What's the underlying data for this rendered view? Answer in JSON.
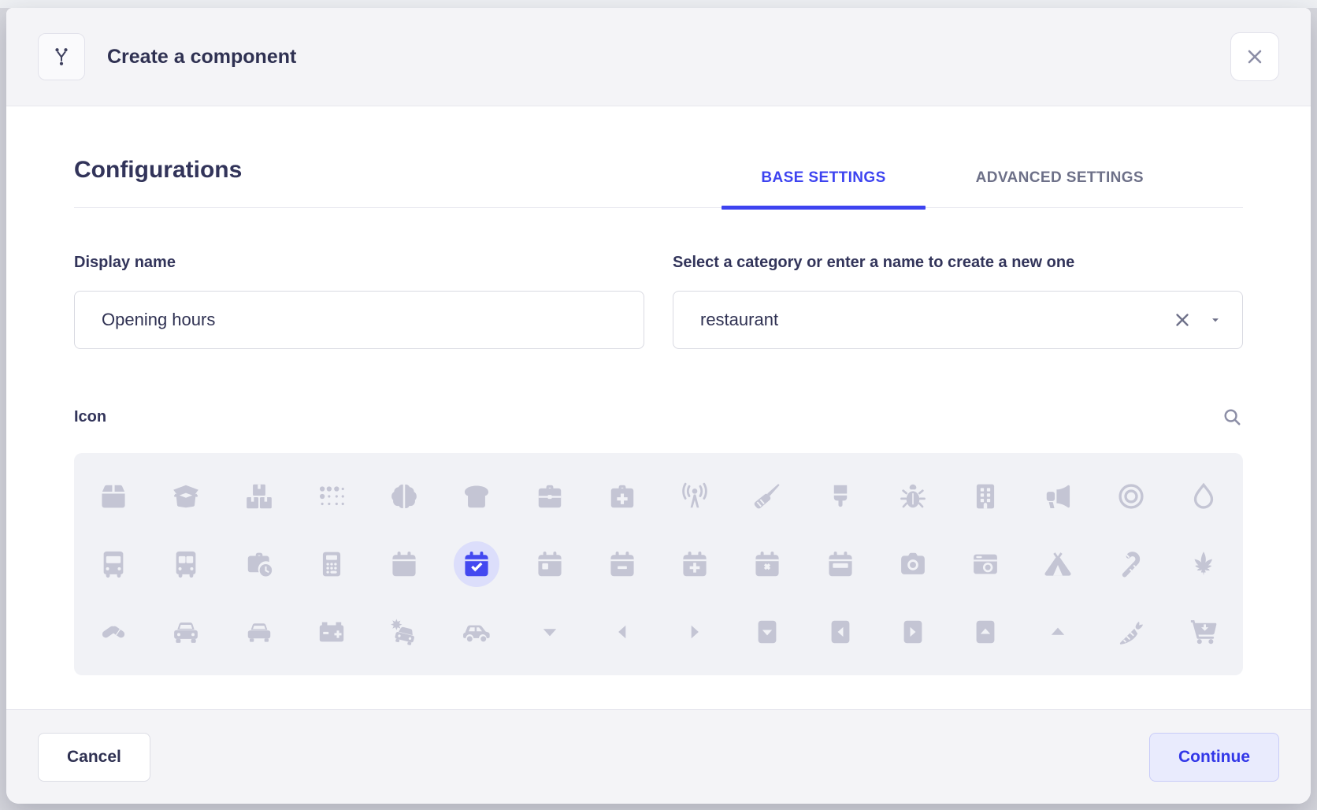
{
  "modal": {
    "header": {
      "title": "Create a component",
      "icon": "component-branch-icon",
      "close_icon": "close-x"
    },
    "heading": "Configurations",
    "tabs": [
      {
        "label": "BASE SETTINGS",
        "active": true
      },
      {
        "label": "ADVANCED SETTINGS",
        "active": false
      }
    ],
    "fields": {
      "display_name": {
        "label": "Display name",
        "value": "Opening hours"
      },
      "category": {
        "label": "Select a category or enter a name to create a new one",
        "value": "restaurant",
        "clear_icon": "clear-x",
        "caret_icon": "caret-down"
      }
    },
    "icon_picker": {
      "label": "Icon",
      "search_icon": "magnifier",
      "selected_icon": "calendar-check",
      "icons": [
        "box",
        "box-open",
        "boxes-stacked",
        "braille",
        "brain",
        "bread-slice",
        "briefcase",
        "briefcase-medical",
        "broadcast-tower",
        "broom",
        "brush",
        "bug",
        "building",
        "bullhorn",
        "bullseye",
        "burn",
        "bus",
        "bus-alt",
        "business-time",
        "calculator",
        "calendar",
        "calendar-check",
        "calendar-day",
        "calendar-minus",
        "calendar-plus",
        "calendar-times",
        "calendar-week",
        "camera",
        "camera-retro",
        "campground",
        "candy-cane",
        "cannabis",
        "capsules",
        "car",
        "car-alt",
        "car-battery",
        "car-crash",
        "car-side",
        "caret-down",
        "caret-left",
        "caret-right",
        "caret-square-down",
        "caret-square-left",
        "caret-square-right",
        "caret-square-up",
        "caret-up",
        "carrot",
        "cart-arrow-down"
      ]
    },
    "footer": {
      "cancel_label": "Cancel",
      "continue_label": "Continue"
    }
  },
  "colors": {
    "tab_active_blue": "#3d43f0",
    "selected_icon_blue": "#4348f0",
    "selected_icon_halo": "#dcdefb",
    "icon_gray": "#c4c5d4",
    "text_dark": "#2f3152",
    "tab_inactive_gray": "#6d7088",
    "header_footer_bg": "#f4f4f7",
    "grid_bg": "#f1f2f6",
    "continue_bg": "#e9ebfd",
    "continue_text": "#3237e8"
  }
}
